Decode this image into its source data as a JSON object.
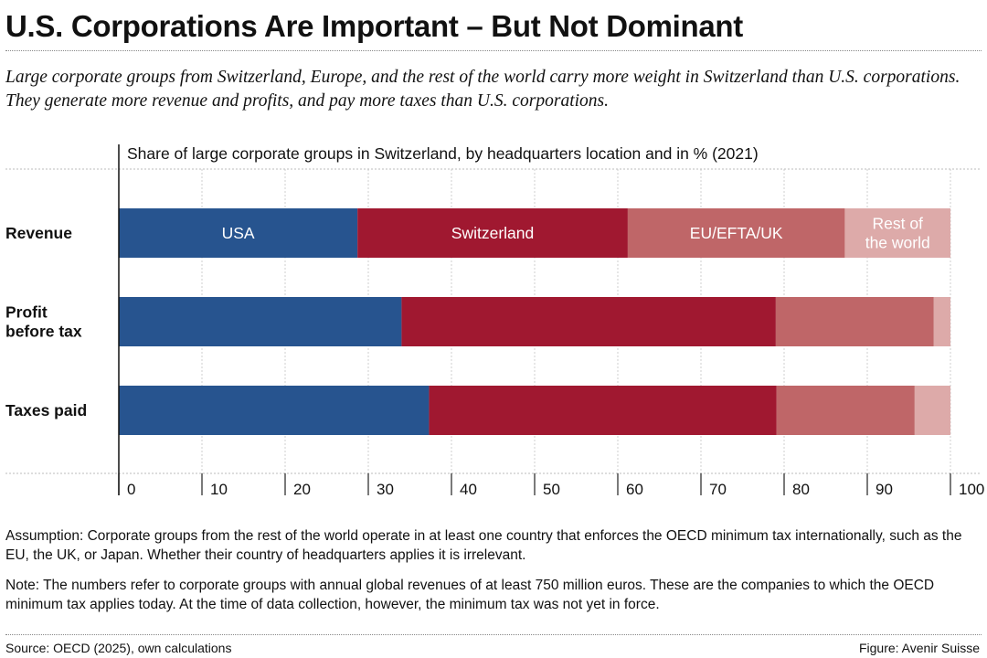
{
  "header": {
    "title": "U.S. Corporations Are Important – But Not Dominant",
    "subtitle": "Large corporate groups from Switzerland, Europe, and the rest of the world carry more weight in Switzerland than U.S. corporations. They generate more revenue and profits, and pay more taxes than U.S. corporations."
  },
  "chart_data": {
    "type": "bar",
    "orientation": "horizontal",
    "stacked": true,
    "title": "Share of large corporate groups in Switzerland, by headquarters location and in % (2021)",
    "categories": [
      [
        "Revenue"
      ],
      [
        "Profit",
        "before tax"
      ],
      [
        "Taxes paid"
      ]
    ],
    "series": [
      {
        "name": "USA",
        "color": "#27548f",
        "label_color": "#ffffff",
        "values": [
          28.7,
          34.0,
          37.3
        ]
      },
      {
        "name": "Switzerland",
        "color": "#a01830",
        "label_color": "#ffffff",
        "values": [
          32.5,
          45.0,
          41.8
        ]
      },
      {
        "name": "EU/EFTA/UK",
        "color": "#bf6668",
        "label_color": "#ffffff",
        "values": [
          26.1,
          19.0,
          16.6
        ]
      },
      {
        "name": [
          "Rest of",
          "the world"
        ],
        "color": "#ddaaa9",
        "label_color": "#ffffff",
        "values": [
          12.7,
          2.0,
          4.3
        ]
      }
    ],
    "xlim": [
      0,
      100
    ],
    "xticks": [
      0,
      10,
      20,
      30,
      40,
      50,
      60,
      70,
      80,
      90,
      100
    ],
    "grid": true
  },
  "notes": {
    "assumption": "Assumption: Corporate groups from the rest of the world operate in at least one country that enforces the OECD minimum tax internationally, such as the EU, the UK, or Japan. Whether their country of headquarters applies it is irrelevant.",
    "note": "Note: The numbers refer to corporate groups with annual global revenues of at least 750 million euros. These are the companies to which the OECD minimum tax applies today. At the time of data collection, however, the minimum tax was not yet in force."
  },
  "footer": {
    "source": "Source: OECD (2025), own calculations",
    "credit": "Figure: Avenir Suisse"
  }
}
